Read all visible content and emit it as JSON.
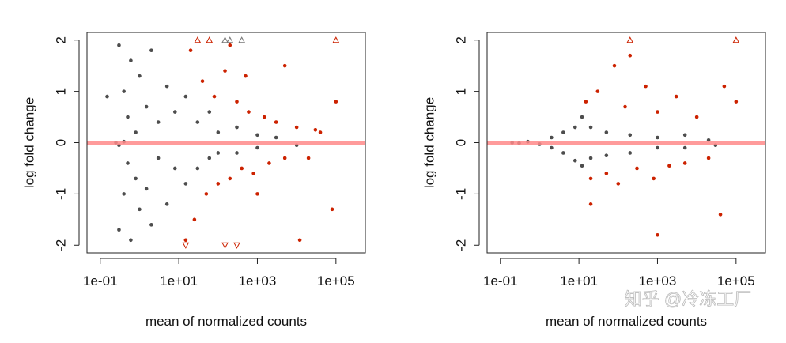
{
  "chart_data": [
    {
      "type": "scatter",
      "xlabel": "mean of normalized counts",
      "ylabel": "log fold change",
      "xscale": "log",
      "xlim": [
        0.046,
        560000
      ],
      "ylim": [
        -2.15,
        2.15
      ],
      "xticks": [
        {
          "value": 0.1,
          "label": "1e-01"
        },
        {
          "value": 10,
          "label": "1e+01"
        },
        {
          "value": 1000,
          "label": "1e+03"
        },
        {
          "value": 100000,
          "label": "1e+05"
        }
      ],
      "yticks": [
        -2,
        -1,
        0,
        1,
        2
      ],
      "hline": 0,
      "hline_color": "#ff8a8a",
      "series": [
        {
          "color": "#4d4d4d",
          "marker": "circle",
          "x": [
            0.3,
            0.3,
            0.4,
            0.4,
            0.5,
            0.5,
            0.6,
            0.6,
            0.8,
            0.8,
            1,
            1,
            1.5,
            1.5,
            2,
            2,
            3,
            3,
            5,
            5,
            8,
            8,
            15,
            15,
            30,
            30,
            60,
            60,
            100,
            100,
            300,
            300,
            1000,
            1000,
            3000,
            10000,
            0.15,
            0.3,
            0.25,
            0.4
          ],
          "values": [
            1.9,
            -1.7,
            1.0,
            -1.0,
            0.5,
            -0.4,
            1.6,
            -1.9,
            0.2,
            -0.7,
            1.3,
            -1.3,
            0.7,
            -0.9,
            1.8,
            -1.6,
            0.4,
            -0.3,
            1.1,
            -1.2,
            0.6,
            -0.5,
            0.9,
            -0.8,
            0.4,
            -0.5,
            0.6,
            -0.3,
            0.2,
            -0.2,
            0.3,
            -0.2,
            0.15,
            -0.1,
            0.1,
            -0.05,
            0.9,
            -0.05,
            0,
            0.02
          ]
        },
        {
          "color": "#cc2200",
          "marker": "circle",
          "x": [
            20,
            25,
            40,
            50,
            80,
            100,
            150,
            200,
            300,
            400,
            600,
            800,
            1500,
            2000,
            3000,
            5000,
            10000,
            20000,
            30000,
            100000,
            80000,
            12000,
            5000,
            200,
            15,
            40000,
            500,
            1000
          ],
          "values": [
            1.8,
            -1.5,
            1.2,
            -1.0,
            0.9,
            -0.8,
            1.4,
            -0.7,
            0.8,
            -0.5,
            0.6,
            -0.6,
            0.5,
            -0.4,
            0.4,
            -0.3,
            0.3,
            -0.3,
            0.25,
            0.8,
            -1.3,
            -1.9,
            1.5,
            1.9,
            -1.9,
            0.2,
            1.3,
            -1.0
          ]
        },
        {
          "color": "#cc2200",
          "marker": "triangle",
          "x": [
            30,
            60,
            100000,
            150,
            300,
            15
          ],
          "values": [
            2,
            2,
            2,
            -2,
            -2,
            -2
          ]
        },
        {
          "color": "#777777",
          "marker": "triangle",
          "x": [
            150,
            200,
            400
          ],
          "values": [
            2,
            2,
            2
          ]
        }
      ]
    },
    {
      "type": "scatter",
      "xlabel": "mean of normalized counts",
      "ylabel": "log fold change",
      "xscale": "log",
      "xlim": [
        0.046,
        560000
      ],
      "ylim": [
        -2.15,
        2.15
      ],
      "xticks": [
        {
          "value": 0.1,
          "label": "1e-01"
        },
        {
          "value": 10,
          "label": "1e+01"
        },
        {
          "value": 1000,
          "label": "1e+03"
        },
        {
          "value": 100000,
          "label": "1e+05"
        }
      ],
      "yticks": [
        -2,
        -1,
        0,
        1,
        2
      ],
      "hline": 0,
      "hline_color": "#ff8a8a",
      "series": [
        {
          "color": "#4d4d4d",
          "marker": "circle",
          "x": [
            0.2,
            0.5,
            1,
            2,
            2,
            4,
            4,
            8,
            8,
            12,
            12,
            20,
            20,
            50,
            50,
            200,
            200,
            1000,
            1000,
            5000,
            5000,
            20000,
            30000,
            0.3
          ],
          "values": [
            0,
            0.02,
            -0.03,
            0.1,
            -0.1,
            0.2,
            -0.2,
            0.3,
            -0.35,
            0.5,
            -0.45,
            0.3,
            -0.3,
            0.2,
            -0.25,
            0.15,
            -0.2,
            0.1,
            -0.1,
            0.15,
            -0.1,
            0.05,
            -0.05,
            -0.01
          ]
        },
        {
          "color": "#cc2200",
          "marker": "circle",
          "x": [
            15,
            20,
            30,
            50,
            80,
            100,
            150,
            300,
            500,
            800,
            1000,
            2000,
            3000,
            5000,
            10000,
            20000,
            100000,
            40000,
            20,
            1000,
            50000,
            200
          ],
          "values": [
            0.8,
            -0.7,
            1.0,
            -0.6,
            1.5,
            -0.8,
            0.7,
            -0.5,
            1.1,
            -0.7,
            0.6,
            -0.45,
            0.9,
            -0.4,
            0.5,
            -0.3,
            0.8,
            -1.4,
            -1.2,
            -1.8,
            1.1,
            1.7
          ]
        },
        {
          "color": "#cc2200",
          "marker": "triangle",
          "x": [
            200,
            100000
          ],
          "values": [
            2,
            2
          ]
        }
      ]
    }
  ],
  "watermark": "知乎 @冷冻工厂"
}
